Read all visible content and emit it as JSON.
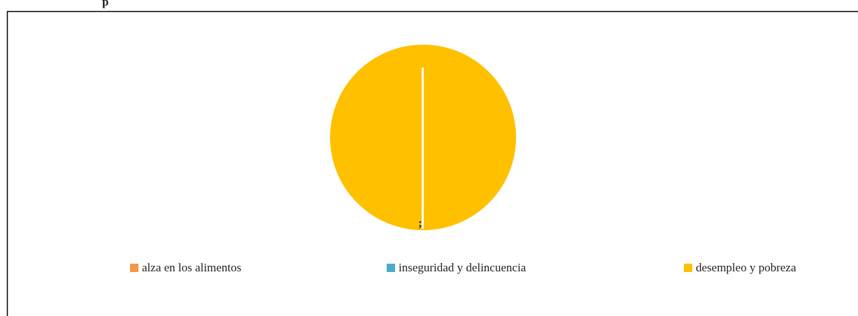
{
  "chart_data": {
    "type": "pie",
    "title": "p",
    "categories": [
      "alza en los alimentos",
      "inseguridad y delincuencia",
      "desempleo y pobreza"
    ],
    "values": [
      0,
      0,
      100
    ],
    "colors": [
      "#f79646",
      "#4bacc6",
      "#ffc000"
    ],
    "annotations": [
      ";"
    ],
    "legend": "bottom"
  }
}
